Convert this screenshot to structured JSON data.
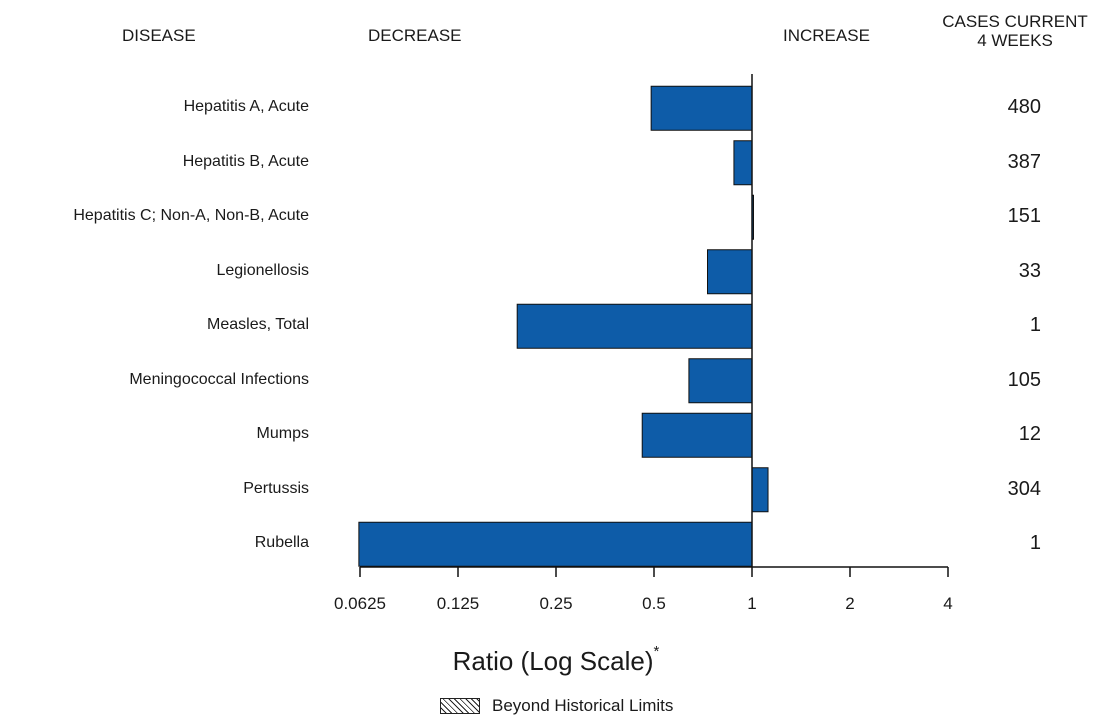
{
  "headers": {
    "disease": "DISEASE",
    "decrease": "DECREASE",
    "increase": "INCREASE",
    "cases_line1": "CASES CURRENT",
    "cases_line2": "4 WEEKS"
  },
  "chart_data": {
    "type": "bar",
    "orientation": "horizontal",
    "scale": "log2",
    "baseline": 1,
    "xlim": [
      0.0625,
      4
    ],
    "xlabel": "Ratio (Log Scale)",
    "xlabel_marker": "*",
    "ticks": [
      "0.0625",
      "0.125",
      "0.25",
      "0.5",
      "1",
      "2",
      "4"
    ],
    "tick_values": [
      0.0625,
      0.125,
      0.25,
      0.5,
      1,
      2,
      4
    ],
    "categories": [
      "Hepatitis A, Acute",
      "Hepatitis B, Acute",
      "Hepatitis C; Non-A, Non-B, Acute",
      "Legionellosis",
      "Measles, Total",
      "Meningococcal Infections",
      "Mumps",
      "Pertussis",
      "Rubella"
    ],
    "values": [
      0.49,
      0.88,
      1.01,
      0.73,
      0.19,
      0.64,
      0.46,
      1.12,
      0.062
    ],
    "cases": [
      "480",
      "387",
      "151",
      "33",
      "1",
      "105",
      "12",
      "304",
      "1"
    ],
    "bar_color": "#0e5ca8",
    "legend": "Beyond Historical Limits"
  }
}
